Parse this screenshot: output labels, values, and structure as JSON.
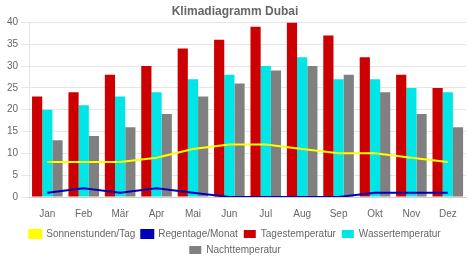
{
  "chart_data": {
    "type": "bar",
    "title": "Klimadiagramm Dubai",
    "categories": [
      "Jan",
      "Feb",
      "Mär",
      "Apr",
      "Mai",
      "Jun",
      "Jul",
      "Aug",
      "Sep",
      "Okt",
      "Nov",
      "Dez"
    ],
    "series": [
      {
        "name": "Tagestemperatur",
        "color": "#CC0000",
        "values": [
          23,
          24,
          28,
          30,
          34,
          36,
          39,
          40,
          37,
          32,
          28,
          25
        ]
      },
      {
        "name": "Wassertemperatur",
        "color": "#00E5E5",
        "values": [
          20,
          21,
          23,
          24,
          27,
          28,
          30,
          32,
          27,
          27,
          25,
          24
        ]
      },
      {
        "name": "Nachttemperatur",
        "color": "#808080",
        "values": [
          13,
          14,
          16,
          19,
          23,
          26,
          29,
          30,
          28,
          24,
          19,
          16
        ]
      },
      {
        "name": "Sonnenstunden/Tag",
        "type": "line",
        "color": "#FFFF00",
        "values": [
          8,
          8,
          8,
          9,
          11,
          12,
          12,
          11,
          10,
          10,
          9,
          8
        ]
      },
      {
        "name": "Regentage/Monat",
        "type": "line",
        "color": "#0000BB",
        "values": [
          1,
          2,
          1,
          2,
          1,
          0,
          0,
          0,
          0,
          1,
          1,
          1
        ]
      }
    ],
    "ylim": [
      0,
      40
    ],
    "yticks": [
      0,
      5,
      10,
      15,
      20,
      25,
      30,
      35,
      40
    ],
    "grid": true,
    "legend": "bottom"
  }
}
